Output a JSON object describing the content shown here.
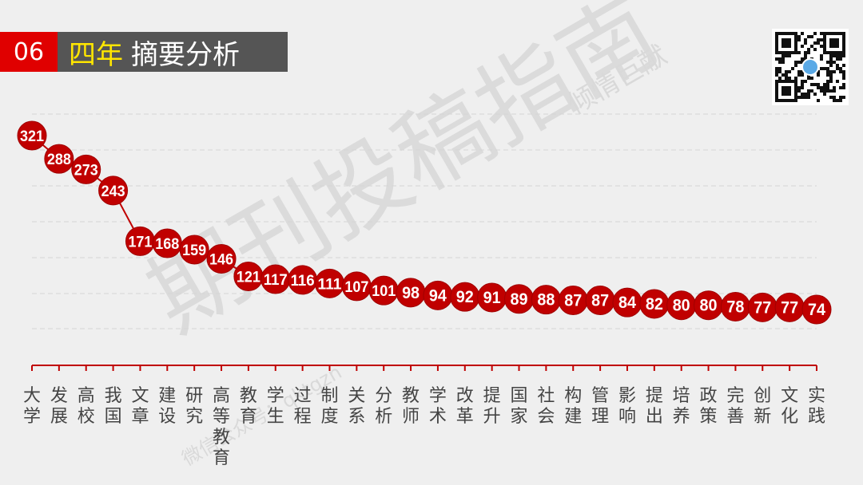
{
  "header": {
    "number": "06",
    "title_highlight": "四年",
    "title_rest": "摘要分析"
  },
  "watermark": {
    "main": "期刊投稿指南",
    "sub": "倾情巨献",
    "small": "微信公众号：qktgzn"
  },
  "colors": {
    "accent_red": "#c00000",
    "header_red": "#e00000",
    "header_gray": "#555555",
    "highlight_yellow": "#ffe600"
  },
  "chart_data": {
    "type": "line",
    "categories": [
      "大学",
      "发展",
      "高校",
      "我国",
      "文章",
      "建设",
      "研究",
      "高等教育",
      "教育",
      "学生",
      "过程",
      "制度",
      "关系",
      "分析",
      "教师",
      "学术",
      "改革",
      "提升",
      "国家",
      "社会",
      "构建",
      "管理",
      "影响",
      "提出",
      "培养",
      "政策",
      "完善",
      "创新",
      "文化",
      "实践"
    ],
    "values": [
      321,
      288,
      273,
      243,
      171,
      168,
      159,
      146,
      121,
      117,
      116,
      111,
      107,
      101,
      98,
      94,
      92,
      91,
      89,
      88,
      87,
      87,
      84,
      82,
      80,
      80,
      78,
      77,
      77,
      74
    ],
    "grid": true,
    "data_labels": true
  }
}
